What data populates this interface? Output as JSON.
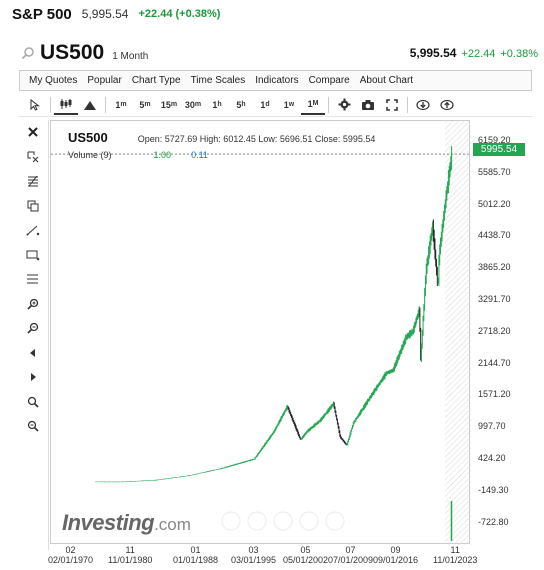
{
  "header": {
    "title": "S&P 500",
    "price": "5,995.54",
    "change": "+22.44 (+0.38%)"
  },
  "symbol_row": {
    "symbol": "US500",
    "period": "1 Month",
    "price": "5,995.54",
    "change": "+22.44",
    "change_pct": "+0.38%"
  },
  "menu": [
    "My Quotes",
    "Popular",
    "Chart Type",
    "Time Scales",
    "Indicators",
    "Compare",
    "About Chart"
  ],
  "toolbar": {
    "intervals": [
      {
        "label": "1",
        "sup": "m"
      },
      {
        "label": "5",
        "sup": "m"
      },
      {
        "label": "15",
        "sup": "m"
      },
      {
        "label": "30",
        "sup": "m"
      },
      {
        "label": "1",
        "sup": "h"
      },
      {
        "label": "5",
        "sup": "h"
      },
      {
        "label": "1",
        "sup": "d"
      },
      {
        "label": "1",
        "sup": "w"
      },
      {
        "label": "1",
        "sup": "M"
      }
    ],
    "icons": [
      "cursor-icon",
      "candlestick-icon",
      "area-chart-icon",
      "settings-icon",
      "camera-icon",
      "fullscreen-icon",
      "download-icon",
      "upload-icon"
    ]
  },
  "side_tools": [
    "close-icon",
    "crosshair-remove-icon",
    "fibonacci-icon",
    "copy-icon",
    "trendline-icon",
    "rectangle-icon",
    "horizontal-lines-icon",
    "zoom-in-icon",
    "zoom-out-icon",
    "scroll-left-icon",
    "scroll-right-icon",
    "zoom-reset-icon",
    "magnet-icon"
  ],
  "legend": {
    "symbol": "US500",
    "ohlc": "Open: 5727.69  High: 6012.45  Low: 5696.51  Close: 5995.54",
    "volume_label": "Volume (9)",
    "volume_val": "1.00",
    "volume_ma": "0.11"
  },
  "price_tag": "5995.54",
  "y_axis_labels": [
    "6159.20",
    "5585.70",
    "5012.20",
    "4438.70",
    "3865.20",
    "3291.70",
    "2718.20",
    "2144.70",
    "1571.20",
    "997.70",
    "424.20",
    "-149.30",
    "-722.80"
  ],
  "x_axis_labels": [
    {
      "top": "02",
      "bottom": "02/01/1970"
    },
    {
      "top": "11",
      "bottom": "11/01/1980"
    },
    {
      "top": "01",
      "bottom": "01/01/1988"
    },
    {
      "top": "03",
      "bottom": "03/01/1995"
    },
    {
      "top": "05",
      "bottom": "05/01/2002"
    },
    {
      "top": "07",
      "bottom": "07/01/2009"
    },
    {
      "top": "09",
      "bottom": "09/01/2016"
    },
    {
      "top": "11",
      "bottom": "11/01/2023"
    }
  ],
  "logo": {
    "main": "Investing",
    "suffix": ".com"
  },
  "colors": {
    "up": "#22a652",
    "down": "#222222",
    "accent": "#1a9a39"
  },
  "chart_data": {
    "type": "line",
    "x": [
      1970,
      1975,
      1980,
      1985,
      1990,
      1995,
      1998,
      2000,
      2002,
      2003,
      2005,
      2007,
      2008,
      2009,
      2010,
      2013,
      2015,
      2016,
      2018,
      2019,
      2020,
      2020.2,
      2021,
      2022,
      2022.8,
      2023,
      2024,
      2024.9
    ],
    "values": [
      90,
      90,
      120,
      200,
      330,
      500,
      1000,
      1450,
      850,
      1000,
      1200,
      1500,
      900,
      750,
      1150,
      1700,
      2050,
      2100,
      2700,
      2800,
      3200,
      2300,
      3900,
      4700,
      3600,
      4200,
      5200,
      5995.54
    ],
    "ylim": [
      -722.8,
      6159.2
    ]
  }
}
